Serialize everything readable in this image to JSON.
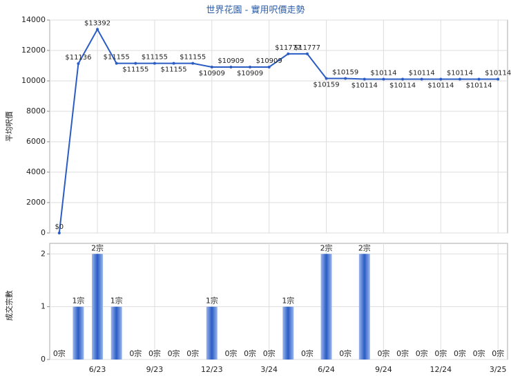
{
  "chart_data": [
    {
      "type": "line",
      "title": "世界花園 - 實用呎價走勢",
      "ylabel": "平均呎價",
      "color": "#2a5cc4",
      "values": [
        0,
        11136,
        13392,
        11155,
        11155,
        11155,
        11155,
        11155,
        10909,
        10909,
        10909,
        10909,
        11777,
        11777,
        10159,
        10159,
        10114,
        10114,
        10114,
        10114,
        10114,
        10114,
        10114,
        10114
      ],
      "value_labels": [
        "$0",
        "$11136",
        "$13392",
        "$11155",
        "$11155",
        "$11155",
        "$11155",
        "$11155",
        "$10909",
        "$10909",
        "$10909",
        "$10909",
        "$11777",
        "$11777",
        "$10159",
        "$10159",
        "$10114",
        "$10114",
        "$10114",
        "$10114",
        "$10114",
        "$10114",
        "$10114",
        "$10114"
      ],
      "ylim": [
        0,
        14000
      ],
      "yticks": [
        0,
        2000,
        4000,
        6000,
        8000,
        10000,
        12000,
        14000
      ],
      "grid": true
    },
    {
      "type": "bar",
      "ylabel": "成交宗數",
      "color": "#2a5cc4",
      "categories": [
        null,
        null,
        "6/23",
        null,
        null,
        "9/23",
        null,
        null,
        "12/23",
        null,
        null,
        "3/24",
        null,
        null,
        "6/24",
        null,
        null,
        "9/24",
        null,
        null,
        "12/24",
        null,
        null,
        "3/25"
      ],
      "values": [
        0,
        1,
        2,
        1,
        0,
        0,
        0,
        0,
        1,
        0,
        0,
        0,
        1,
        0,
        2,
        0,
        2,
        0,
        0,
        0,
        0,
        0,
        0,
        0
      ],
      "value_labels": [
        "0宗",
        "1宗",
        "2宗",
        "1宗",
        "0宗",
        "0宗",
        "0宗",
        "0宗",
        "1宗",
        "0宗",
        "0宗",
        "0宗",
        "1宗",
        "0宗",
        "2宗",
        "0宗",
        "2宗",
        "0宗",
        "0宗",
        "0宗",
        "0宗",
        "0宗",
        "0宗",
        "0宗"
      ],
      "ylim": [
        0,
        2.2
      ],
      "yticks": [
        0,
        1,
        2
      ],
      "grid": true
    }
  ]
}
